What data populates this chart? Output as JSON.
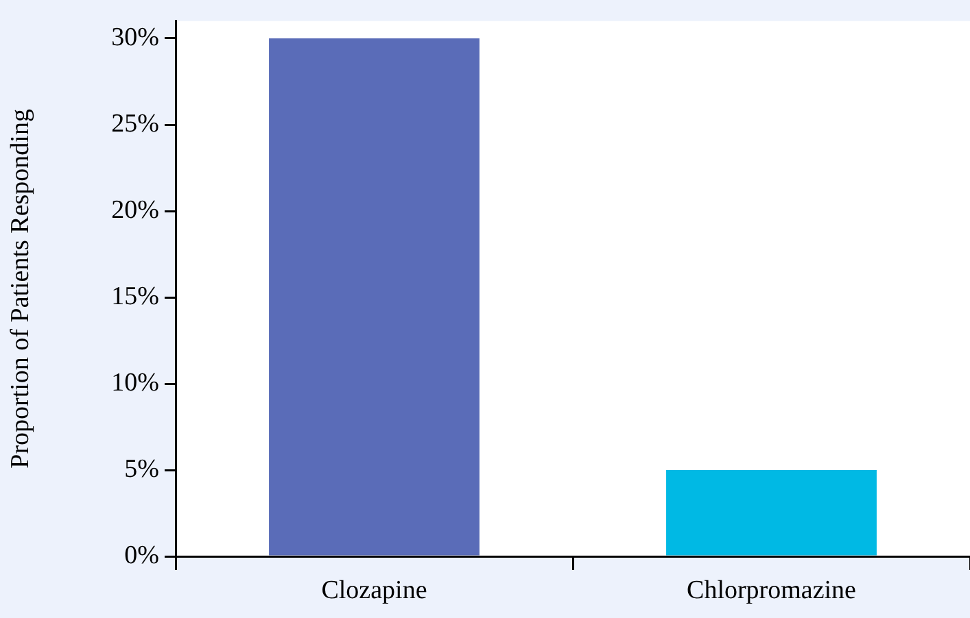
{
  "chart_data": {
    "type": "bar",
    "ylabel": "Proportion of Patients Responding",
    "categories": [
      "Clozapine",
      "Chlorpromazine"
    ],
    "values": [
      30,
      5
    ],
    "colors": [
      "#5a6cb8",
      "#00b9e4"
    ],
    "ylim": [
      0,
      31
    ],
    "yticks": [
      {
        "value": 0,
        "label": "0%"
      },
      {
        "value": 5,
        "label": "5%"
      },
      {
        "value": 10,
        "label": "10%"
      },
      {
        "value": 15,
        "label": "15%"
      },
      {
        "value": 20,
        "label": "20%"
      },
      {
        "value": 25,
        "label": "25%"
      },
      {
        "value": 30,
        "label": "30%"
      }
    ],
    "grid": false,
    "legend": false
  }
}
